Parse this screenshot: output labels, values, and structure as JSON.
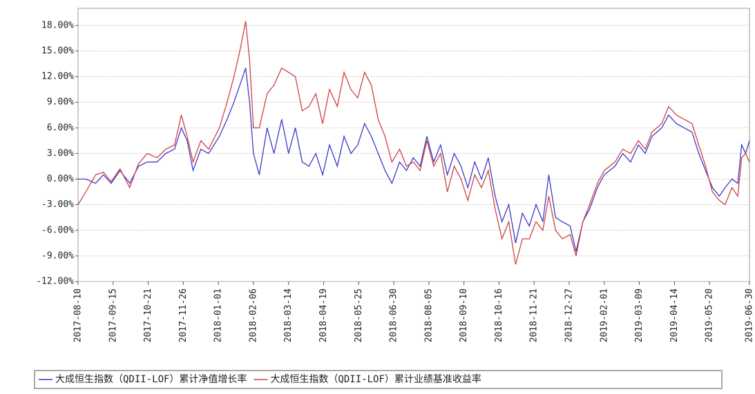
{
  "chart_data": {
    "type": "line",
    "x": [
      "2017-08-10",
      "2017-08-18",
      "2017-08-28",
      "2017-09-05",
      "2017-09-13",
      "2017-09-22",
      "2017-10-02",
      "2017-10-11",
      "2017-10-20",
      "2017-10-30",
      "2017-11-08",
      "2017-11-17",
      "2017-11-24",
      "2017-11-30",
      "2017-12-06",
      "2017-12-14",
      "2017-12-22",
      "2018-01-02",
      "2018-01-10",
      "2018-01-17",
      "2018-01-23",
      "2018-01-29",
      "2018-02-02",
      "2018-02-06",
      "2018-02-12",
      "2018-02-20",
      "2018-02-27",
      "2018-03-07",
      "2018-03-14",
      "2018-03-21",
      "2018-03-28",
      "2018-04-04",
      "2018-04-11",
      "2018-04-18",
      "2018-04-25",
      "2018-05-03",
      "2018-05-10",
      "2018-05-17",
      "2018-05-24",
      "2018-05-31",
      "2018-06-07",
      "2018-06-14",
      "2018-06-21",
      "2018-06-28",
      "2018-07-06",
      "2018-07-13",
      "2018-07-20",
      "2018-07-27",
      "2018-08-03",
      "2018-08-10",
      "2018-08-17",
      "2018-08-24",
      "2018-08-31",
      "2018-09-07",
      "2018-09-14",
      "2018-09-21",
      "2018-09-28",
      "2018-10-05",
      "2018-10-12",
      "2018-10-19",
      "2018-10-26",
      "2018-11-02",
      "2018-11-09",
      "2018-11-16",
      "2018-11-23",
      "2018-11-30",
      "2018-12-06",
      "2018-12-13",
      "2018-12-20",
      "2018-12-28",
      "2019-01-03",
      "2019-01-10",
      "2019-01-17",
      "2019-01-25",
      "2019-02-01",
      "2019-02-12",
      "2019-02-20",
      "2019-02-28",
      "2019-03-08",
      "2019-03-15",
      "2019-03-22",
      "2019-04-01",
      "2019-04-08",
      "2019-04-16",
      "2019-04-24",
      "2019-05-02",
      "2019-05-09",
      "2019-05-16",
      "2019-05-23",
      "2019-05-30",
      "2019-06-05",
      "2019-06-12",
      "2019-06-18",
      "2019-06-22",
      "2019-06-26",
      "2019-06-30"
    ],
    "series": [
      {
        "name": "大成恒生指数（QDII-LOF）累计净值增长率",
        "color": "#3a3ac8",
        "values": [
          0,
          0,
          -0.5,
          0.5,
          -0.5,
          1,
          -0.5,
          1.5,
          2,
          2,
          3,
          3.5,
          6,
          4.5,
          1,
          3.5,
          3,
          5,
          7,
          9,
          11,
          13,
          9,
          3,
          0.5,
          6,
          3,
          7,
          3,
          6,
          2,
          1.5,
          3,
          0.5,
          4,
          1.5,
          5,
          3,
          4,
          6.5,
          5,
          3,
          1,
          -0.5,
          2,
          1,
          2.5,
          1.5,
          5,
          2,
          4,
          0.5,
          3,
          1.5,
          -1,
          2,
          0,
          2.5,
          -2,
          -5,
          -3,
          -7.5,
          -4,
          -5.5,
          -3,
          -5,
          0.5,
          -4.5,
          -5,
          -5.5,
          -8.5,
          -5,
          -3.5,
          -1,
          0.5,
          1.5,
          3,
          2,
          4,
          3,
          5,
          6,
          7.5,
          6.5,
          6,
          5.5,
          3,
          1,
          -1,
          -2,
          -1,
          0,
          -0.5,
          4,
          3,
          4.5
        ]
      },
      {
        "name": "大成恒生指数（QDII-LOF）累计业绩基准收益率",
        "color": "#d04040",
        "values": [
          -3,
          -1.5,
          0.5,
          0.8,
          -0.3,
          1.2,
          -1,
          1.8,
          3,
          2.5,
          3.5,
          4,
          7.5,
          5,
          2,
          4.5,
          3.5,
          6,
          9,
          12,
          15,
          18.5,
          14,
          6,
          6,
          10,
          11,
          13,
          12.5,
          12,
          8,
          8.5,
          10,
          6.5,
          10.5,
          8.5,
          12.5,
          10.5,
          9.5,
          12.5,
          11,
          7,
          5,
          2,
          3.5,
          1.5,
          2,
          1,
          4.5,
          1.5,
          3,
          -1.5,
          1.5,
          0,
          -2.5,
          0.5,
          -1,
          1,
          -3.5,
          -7,
          -5,
          -10,
          -7,
          -7,
          -5,
          -6,
          -2,
          -6,
          -7,
          -6.5,
          -9,
          -5,
          -3,
          -0.5,
          1,
          2,
          3.5,
          3,
          4.5,
          3.5,
          5.5,
          6.5,
          8.5,
          7.5,
          7,
          6.5,
          4,
          1.5,
          -1.5,
          -2.5,
          -3,
          -1,
          -2,
          2.5,
          3,
          2
        ]
      }
    ],
    "xlim": [
      "2017-08-10",
      "2019-06-30"
    ],
    "xticks": [
      "2017-08-10",
      "2017-09-15",
      "2017-10-21",
      "2017-11-26",
      "2018-01-01",
      "2018-02-06",
      "2018-03-14",
      "2018-04-19",
      "2018-05-25",
      "2018-06-30",
      "2018-08-05",
      "2018-09-10",
      "2018-10-16",
      "2018-11-21",
      "2018-12-27",
      "2019-02-01",
      "2019-03-09",
      "2019-04-14",
      "2019-05-20",
      "2019-06-30"
    ],
    "ylim": [
      -12,
      20
    ],
    "yticks": [
      {
        "value": -12,
        "label": "-12.00%"
      },
      {
        "value": -9,
        "label": "-9.00%"
      },
      {
        "value": -6,
        "label": "-6.00%"
      },
      {
        "value": -3,
        "label": "-3.00%"
      },
      {
        "value": 0,
        "label": "0.00%"
      },
      {
        "value": 3,
        "label": "3.00%"
      },
      {
        "value": 6,
        "label": "6.00%"
      },
      {
        "value": 9,
        "label": "9.00%"
      },
      {
        "value": 12,
        "label": "12.00%"
      },
      {
        "value": 15,
        "label": "15.00%"
      },
      {
        "value": 18,
        "label": "18.00%"
      }
    ],
    "grid": true
  }
}
